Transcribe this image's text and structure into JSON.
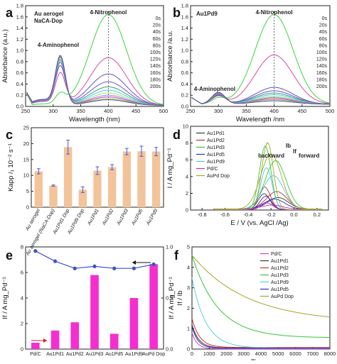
{
  "chart_data": [
    {
      "panel": "a",
      "type": "line",
      "xlabel": "Wavelength (nm)",
      "ylabel": "Absorbance (a.u.)",
      "xlim": [
        250,
        500
      ],
      "ylim": [
        0,
        1.8
      ],
      "xticks": [
        "250",
        "300",
        "350",
        "400",
        "450",
        "500"
      ],
      "yticks": [
        "0.0",
        "0.2",
        "0.4",
        "0.6",
        "0.8",
        "1.0",
        "1.2",
        "1.4",
        "1.6",
        "1.8"
      ],
      "label_lines": [
        "Au aerogel",
        "NaCA-Dop"
      ],
      "label_color": "#c837c8",
      "annotations": [
        "4-Nitrophenol",
        "4-Aminophenol"
      ],
      "legend": [
        "0s",
        "20s",
        "40s",
        "60s",
        "80s",
        "100s",
        "120s",
        "140s",
        "160s",
        "180s",
        "200s"
      ],
      "colors": [
        "#3ad63a",
        "#d64a9f",
        "#5b56c4",
        "#7b4bd1",
        "#2fa37f",
        "#52c8d8",
        "#a0e36a",
        "#9b86e0",
        "#c23cb8",
        "#9ccc4a",
        "#4a4e9e"
      ],
      "peak_400": [
        1.62,
        0.85,
        0.56,
        0.42,
        0.33,
        0.27,
        0.22,
        0.18,
        0.15,
        0.12,
        0.1
      ],
      "peak_315": [
        0.18,
        0.55,
        0.68,
        0.74,
        0.78,
        0.8,
        0.82,
        0.84,
        0.85,
        0.86,
        0.87
      ]
    },
    {
      "panel": "b",
      "type": "line",
      "xlabel": "Wavelength /nm",
      "ylabel": "Absorbance /a.u.",
      "xlim": [
        250,
        500
      ],
      "ylim": [
        0,
        1.8
      ],
      "xticks": [
        "250",
        "300",
        "350",
        "400",
        "450",
        "500"
      ],
      "yticks": [
        "0.0",
        "0.2",
        "0.4",
        "0.6",
        "0.8",
        "1.0",
        "1.2",
        "1.4",
        "1.6",
        "1.8"
      ],
      "label": "Au1Pd9",
      "label_color": "#c837c8",
      "annotations": [
        "4-Nitrophenol",
        "4-Aminophenol"
      ],
      "legend": [
        "0s",
        "20s",
        "40s",
        "60s",
        "80s",
        "100s",
        "120s",
        "140s",
        "160s",
        "180s",
        "200s"
      ],
      "peak_400": [
        1.6,
        0.88,
        0.3,
        0.24,
        0.2,
        0.17,
        0.14,
        0.12,
        0.1,
        0.08,
        0.06
      ],
      "peak_300": [
        0.1,
        0.14,
        0.16,
        0.17,
        0.18,
        0.19,
        0.19,
        0.2,
        0.2,
        0.21,
        0.21
      ]
    },
    {
      "panel": "c",
      "type": "bar",
      "ylabel": "Kapp /₁ 10⁻² s⁻¹",
      "ylim": [
        0,
        25
      ],
      "yticks": [
        "0",
        "5",
        "10",
        "15",
        "20",
        "25"
      ],
      "categories": [
        "Au aerogel",
        "Au aerogel (NaCA-Dop)",
        "Au1Pd1 Dop",
        "Au1Pd9 Dop",
        "Au1Pd1",
        "Au1Pd2",
        "Au1Pd3",
        "Au1Pd5",
        "Au1Pd9"
      ],
      "values": [
        11.3,
        6.8,
        18.9,
        5.5,
        11.5,
        12.6,
        17.5,
        17.6,
        17.5
      ],
      "errors": [
        0.8,
        0.2,
        2.2,
        0.9,
        1.2,
        0.8,
        1.0,
        1.6,
        1.3
      ],
      "bar_color": "#f3c39a"
    },
    {
      "panel": "d",
      "type": "line",
      "xlabel": "E / V (vs. AgCl /Ag)",
      "ylabel": "I / A mg_Pd⁻¹",
      "xlim": [
        -0.9,
        0.3
      ],
      "ylim": [
        0,
        10
      ],
      "xticks": [
        "-0.8",
        "-0.6",
        "-0.4",
        "-0.2",
        "0.0",
        "0.2"
      ],
      "yticks": [
        "0",
        "2",
        "4",
        "6",
        "8",
        "10"
      ],
      "annotations": [
        "backward",
        "forward",
        "Ib",
        "If"
      ],
      "series": [
        {
          "name": "Au1Pd1",
          "color": "#3a3a3a",
          "peak_f": 1.4,
          "peak_b": 1.9
        },
        {
          "name": "Au1Pd2",
          "color": "#c03030",
          "peak_f": 2.1,
          "peak_b": 2.7
        },
        {
          "name": "Au1Pd3",
          "color": "#35c835",
          "peak_f": 5.8,
          "peak_b": 7.6
        },
        {
          "name": "Au1Pd5",
          "color": "#2f2fb8",
          "peak_f": 1.2,
          "peak_b": 1.6
        },
        {
          "name": "Au1Pd9",
          "color": "#55c8e0",
          "peak_f": 4.0,
          "peak_b": 5.0
        },
        {
          "name": "Pd/C",
          "color": "#c02bc0",
          "peak_f": 0.5,
          "peak_b": 0.8
        },
        {
          "name": "AuPd Dop",
          "color": "#a6a628",
          "peak_f": 6.6,
          "peak_b": 8.0
        }
      ]
    },
    {
      "panel": "e",
      "type": "bar",
      "ylabel": "If / A mg_Pd⁻¹",
      "ylabel_right": "If / Ib",
      "ylim": [
        0,
        8
      ],
      "ylim_right": [
        0,
        1.0
      ],
      "yticks": [
        "0",
        "2",
        "4",
        "6",
        "8"
      ],
      "yticks_right": [
        "0.0",
        "0.5",
        "1.0"
      ],
      "categories": [
        "Pd/C",
        "Au1Pd1",
        "Au1Pd2",
        "Au1Pd3",
        "Au1Pd5",
        "Au1Pd9",
        "AuPd Dop"
      ],
      "values": [
        0.5,
        1.45,
        2.1,
        5.8,
        1.2,
        4.0,
        6.65
      ],
      "ratio": [
        0.96,
        0.86,
        0.79,
        0.81,
        0.79,
        0.79,
        0.83
      ],
      "bar_color": "#f52fcf",
      "line_color": "#3f51c7"
    },
    {
      "panel": "f",
      "type": "line",
      "xlabel": "Time s",
      "ylabel": "If / A mg_Pd⁻¹",
      "xlim": [
        0,
        8000
      ],
      "ylim": [
        0,
        5
      ],
      "xticks": [
        "0",
        "1000",
        "2000",
        "3000",
        "4000",
        "5000",
        "6000",
        "7000",
        "8000"
      ],
      "yticks": [
        "0",
        "1",
        "2",
        "3",
        "4",
        "5"
      ],
      "series": [
        {
          "name": "Pd/C",
          "color": "#d23fc9",
          "start": 0.8,
          "end": 0.01,
          "tau": 300
        },
        {
          "name": "Au1Pd1",
          "color": "#3a3a3a",
          "start": 1.2,
          "end": 0.05,
          "tau": 400
        },
        {
          "name": "Au1Pd2",
          "color": "#c83030",
          "start": 1.5,
          "end": 0.08,
          "tau": 450
        },
        {
          "name": "Au1Pd3",
          "color": "#35c835",
          "start": 4.6,
          "end": 0.55,
          "tau": 1500
        },
        {
          "name": "Au1Pd9",
          "color": "#55d3e0",
          "start": 3.5,
          "end": 0.05,
          "tau": 800
        },
        {
          "name": "Au1Pd5",
          "color": "#2f2fb8",
          "start": 1.1,
          "end": 0.04,
          "tau": 350
        },
        {
          "name": "AuPd Dop",
          "color": "#a6a628",
          "start": 4.6,
          "end": 1.3,
          "tau": 3200
        }
      ]
    }
  ]
}
